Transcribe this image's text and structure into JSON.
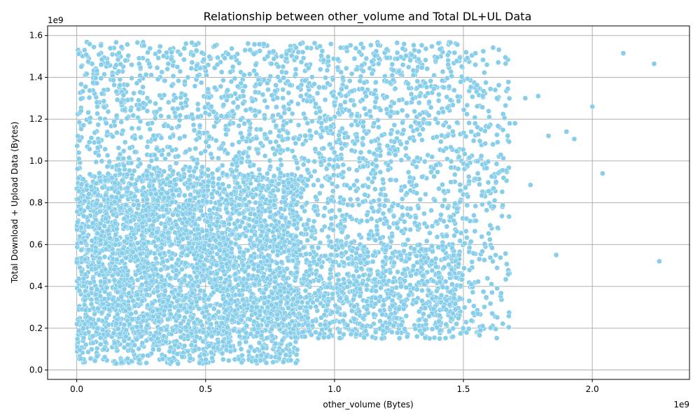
{
  "chart_data": {
    "type": "scatter",
    "title": "Relationship between other_volume and Total DL+UL Data",
    "xlabel": "other_volume (Bytes)",
    "ylabel": "Total Download + Upload Data (Bytes)",
    "x_offset_label": "1e9",
    "y_offset_label": "1e9",
    "xlim": [
      -0.113,
      2.377
    ],
    "ylim": [
      -0.045,
      1.646
    ],
    "x_ticks": [
      0.0,
      0.5,
      1.0,
      1.5,
      2.0
    ],
    "x_tick_labels": [
      "0.0",
      "0.5",
      "1.0",
      "1.5",
      "2.0"
    ],
    "y_ticks": [
      0.0,
      0.2,
      0.4,
      0.6,
      0.8,
      1.0,
      1.2,
      1.4,
      1.6
    ],
    "y_tick_labels": [
      "0.0",
      "0.2",
      "0.4",
      "0.6",
      "0.8",
      "1.0",
      "1.2",
      "1.4",
      "1.6"
    ],
    "grid": true,
    "marker_color": "#87ceeb",
    "marker_edge_color": "#ffffff",
    "point_clouds": [
      {
        "x_range": [
          0.0,
          0.86
        ],
        "y_range": [
          0.03,
          0.94
        ],
        "count": 2600
      },
      {
        "x_range": [
          0.0,
          1.5
        ],
        "y_range": [
          0.15,
          1.57
        ],
        "count": 3200
      },
      {
        "x_range": [
          0.86,
          1.5
        ],
        "y_range": [
          0.15,
          0.6
        ],
        "count": 450
      },
      {
        "x_range": [
          1.5,
          1.68
        ],
        "y_range": [
          0.15,
          1.55
        ],
        "count": 260
      }
    ],
    "outliers": [
      {
        "x": 1.7,
        "y": 1.18
      },
      {
        "x": 1.74,
        "y": 1.3
      },
      {
        "x": 1.76,
        "y": 0.885
      },
      {
        "x": 1.79,
        "y": 1.31
      },
      {
        "x": 1.83,
        "y": 1.12
      },
      {
        "x": 1.86,
        "y": 0.55
      },
      {
        "x": 1.9,
        "y": 1.14
      },
      {
        "x": 1.93,
        "y": 1.105
      },
      {
        "x": 2.0,
        "y": 1.26
      },
      {
        "x": 2.04,
        "y": 0.94
      },
      {
        "x": 2.12,
        "y": 1.515
      },
      {
        "x": 2.24,
        "y": 1.465
      },
      {
        "x": 2.26,
        "y": 0.52
      }
    ]
  }
}
